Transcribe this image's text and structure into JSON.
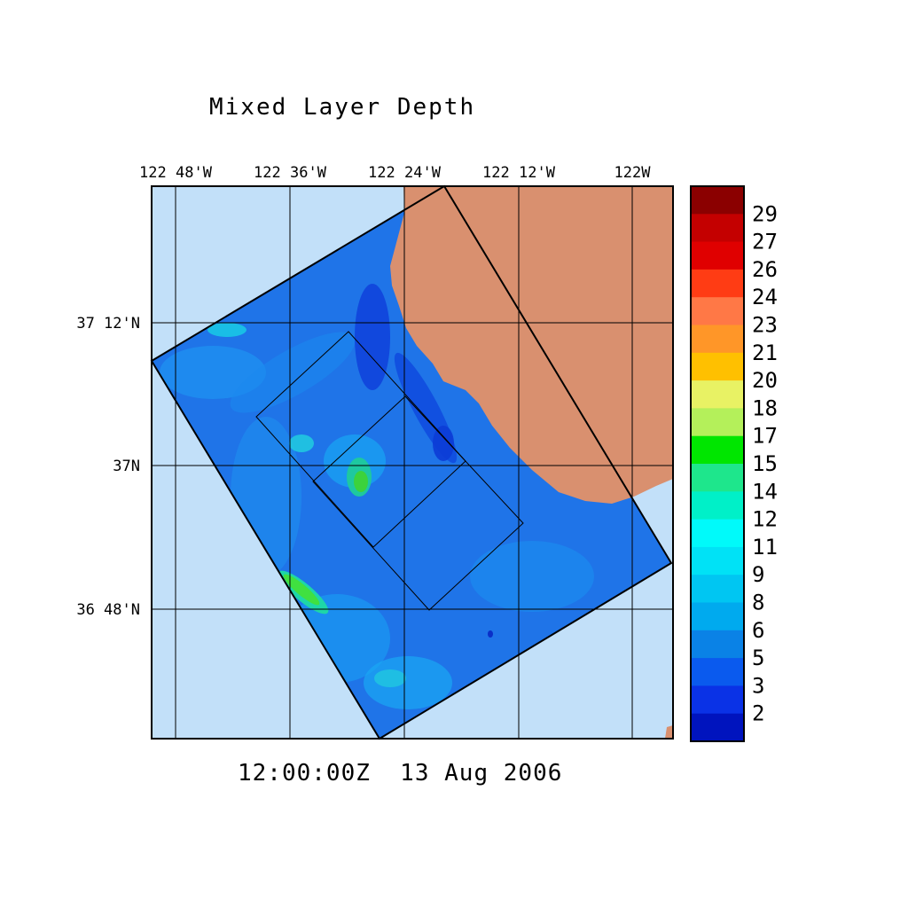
{
  "title": "Mixed Layer Depth",
  "timestamp": "12:00:00Z  13 Aug 2006",
  "colors": {
    "land": "#d9906f",
    "water_outside": "#c2e0f9",
    "grid": "#000000",
    "domain_base": "#1f74e8"
  },
  "map": {
    "lon_labels": [
      "122 48'W",
      "122 36'W",
      "122 24'W",
      "122 12'W",
      "122W"
    ],
    "lat_labels": [
      "37 12'N",
      "37N",
      "36 48'N"
    ]
  },
  "legend": {
    "labels": [
      "29",
      "27",
      "26",
      "24",
      "23",
      "21",
      "20",
      "18",
      "17",
      "15",
      "14",
      "12",
      "11",
      "9",
      "8",
      "6",
      "5",
      "3",
      "2"
    ],
    "colors": [
      "#8b0000",
      "#c40000",
      "#e00000",
      "#ff3c14",
      "#ff7846",
      "#ff9628",
      "#ffc000",
      "#e8f264",
      "#b4f05a",
      "#00e600",
      "#1ee68c",
      "#00f0c8",
      "#00fafa",
      "#00e2f6",
      "#00c6f2",
      "#00aaee",
      "#0a82e6",
      "#0a5aee",
      "#0a32e6",
      "#0014be"
    ]
  }
}
